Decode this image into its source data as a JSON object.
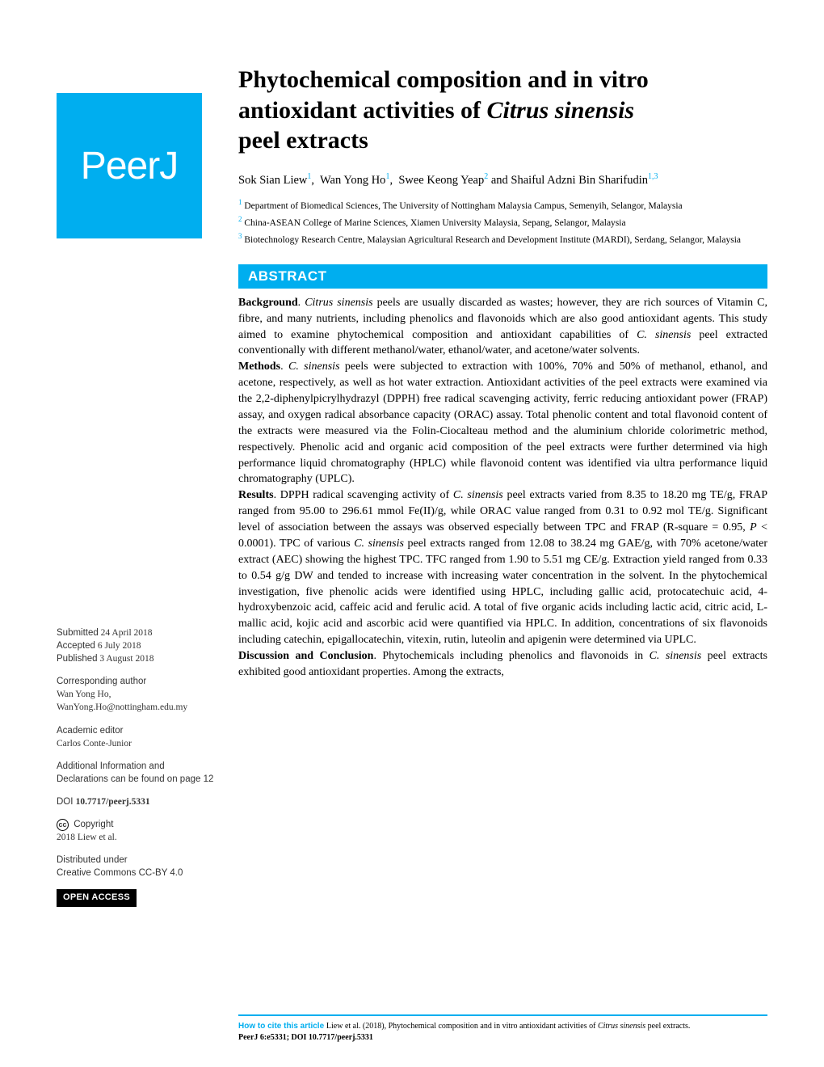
{
  "logo": {
    "text": "PeerJ"
  },
  "brand_color": "#00aeef",
  "title": {
    "line1": "Phytochemical composition and in vitro",
    "line2_pre": "antioxidant activities of ",
    "line2_italic": "Citrus sinensis",
    "line3": "peel extracts"
  },
  "authors": {
    "a1": "Sok Sian Liew",
    "a1_sup": "1",
    "a2": "Wan Yong Ho",
    "a2_sup": "1",
    "a3": "Swee Keong Yeap",
    "a3_sup": "2",
    "and": " and ",
    "a4": "Shaiful Adzni Bin Sharifudin",
    "a4_sup": "1,3"
  },
  "affiliations": {
    "aff1_sup": "1",
    "aff1": " Department of Biomedical Sciences, The University of Nottingham Malaysia Campus, Semenyih, Selangor, Malaysia",
    "aff2_sup": "2",
    "aff2": " China-ASEAN College of Marine Sciences, Xiamen University Malaysia, Sepang, Selangor, Malaysia",
    "aff3_sup": "3",
    "aff3": " Biotechnology Research Centre, Malaysian Agricultural Research and Development Institute (MARDI), Serdang, Selangor, Malaysia"
  },
  "abstract": {
    "header": "ABSTRACT",
    "bg_label": "Background",
    "bg_text1": ". ",
    "bg_italic1": "Citrus sinensis",
    "bg_text2": " peels are usually discarded as wastes; however, they are rich sources of Vitamin C, fibre, and many nutrients, including phenolics and flavonoids which are also good antioxidant agents. This study aimed to examine phytochemical composition and antioxidant capabilities of ",
    "bg_italic2": "C. sinensis",
    "bg_text3": " peel extracted conventionally with different methanol/water, ethanol/water, and acetone/water solvents.",
    "me_label": "Methods",
    "me_text1": ". ",
    "me_italic1": "C. sinensis",
    "me_text2": " peels were subjected to extraction with 100%, 70% and 50% of methanol, ethanol, and acetone, respectively, as well as hot water extraction. Antioxidant activities of the peel extracts were examined via the 2,2-diphenylpicrylhydrazyl (DPPH) free radical scavenging activity, ferric reducing antioxidant power (FRAP) assay, and oxygen radical absorbance capacity (ORAC) assay. Total phenolic content and total flavonoid content of the extracts were measured via the Folin-Ciocalteau method and the aluminium chloride colorimetric method, respectively. Phenolic acid and organic acid composition of the peel extracts were further determined via high performance liquid chromatography (HPLC) while flavonoid content was identified via ultra performance liquid chromatography (UPLC).",
    "re_label": "Results",
    "re_text1": ". DPPH radical scavenging activity of ",
    "re_italic1": "C. sinensis",
    "re_text2": " peel extracts varied from 8.35 to 18.20 mg TE/g, FRAP ranged from 95.00 to 296.61 mmol Fe(II)/g, while ORAC value ranged from 0.31 to 0.92 mol TE/g. Significant level of association between the assays was observed especially between TPC and FRAP (R-square = 0.95, ",
    "re_italic2": "P",
    "re_text3": " < 0.0001). TPC of various ",
    "re_italic3": "C. sinensis",
    "re_text4": " peel extracts ranged from 12.08 to 38.24 mg GAE/g, with 70% acetone/water extract (AEC) showing the highest TPC. TFC ranged from 1.90 to 5.51 mg CE/g. Extraction yield ranged from 0.33 to 0.54 g/g DW and tended to increase with increasing water concentration in the solvent. In the phytochemical investigation, five phenolic acids were identified using HPLC, including gallic acid, protocatechuic acid, 4-hydroxybenzoic acid, caffeic acid and ferulic acid. A total of five organic acids including lactic acid, citric acid, L-mallic acid, kojic acid and ascorbic acid were quantified via HPLC. In addition, concentrations of six flavonoids including catechin, epigallocatechin, vitexin, rutin, luteolin and apigenin were determined via UPLC.",
    "dc_label": "Discussion and Conclusion",
    "dc_text1": ". Phytochemicals including phenolics and flavonoids in ",
    "dc_italic1": "C. sinensis",
    "dc_text2": " peel extracts exhibited good antioxidant properties. Among the extracts,"
  },
  "sidebar": {
    "submitted_label": "Submitted",
    "submitted_date": " 24 April 2018",
    "accepted_label": "Accepted",
    "accepted_date": " 6 July 2018",
    "published_label": "Published",
    "published_date": " 3 August 2018",
    "corr_label": "Corresponding author",
    "corr_name": "Wan Yong Ho,",
    "corr_email": "WanYong.Ho@nottingham.edu.my",
    "editor_label": "Academic editor",
    "editor_name": "Carlos Conte-Junior",
    "addl_info": "Additional Information and Declarations can be found on page 12",
    "doi_label": "DOI ",
    "doi": "10.7717/peerj.5331",
    "copyright_label": " Copyright",
    "copyright_holder": "2018 Liew et al.",
    "dist_label": "Distributed under",
    "dist_license": "Creative Commons CC-BY 4.0",
    "open_access": "OPEN ACCESS"
  },
  "citation": {
    "label": "How to cite this article ",
    "text1": "Liew et al. (2018), Phytochemical composition and in vitro antioxidant activities of ",
    "italic1": "Citrus sinensis",
    "text2": " peel extracts. ",
    "text3": "PeerJ 6:e5331; DOI 10.7717/peerj.5331"
  }
}
